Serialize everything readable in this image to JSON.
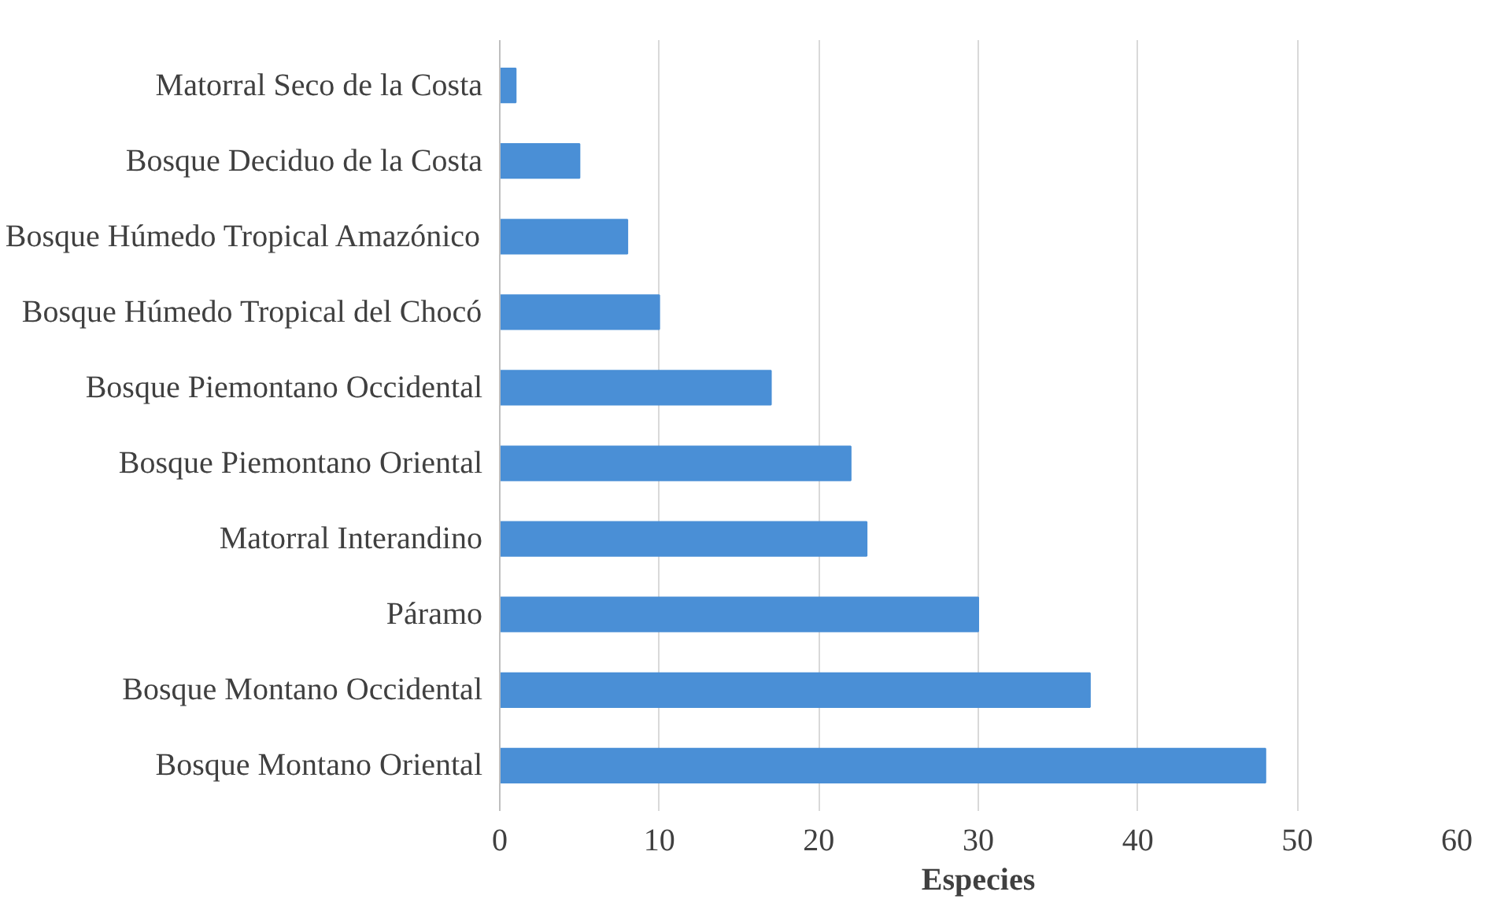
{
  "chart_data": {
    "type": "bar",
    "orientation": "horizontal",
    "xlabel": "Especies",
    "categories": [
      "Matorral Seco de la Costa",
      "Bosque Deciduo de la Costa",
      "Bosque Húmedo Tropical Amazónico",
      "Bosque Húmedo Tropical del Chocó",
      "Bosque Piemontano Occidental",
      "Bosque Piemontano Oriental",
      "Matorral Interandino",
      "Páramo",
      "Bosque Montano Occidental",
      "Bosque Montano Oriental"
    ],
    "values": [
      1,
      5,
      8,
      10,
      17,
      22,
      23,
      30,
      37,
      48
    ],
    "color": "#4a8fd6",
    "xlim": [
      0,
      60
    ],
    "xticks": [
      0,
      10,
      20,
      30,
      40,
      50,
      60
    ],
    "grid": "x"
  }
}
